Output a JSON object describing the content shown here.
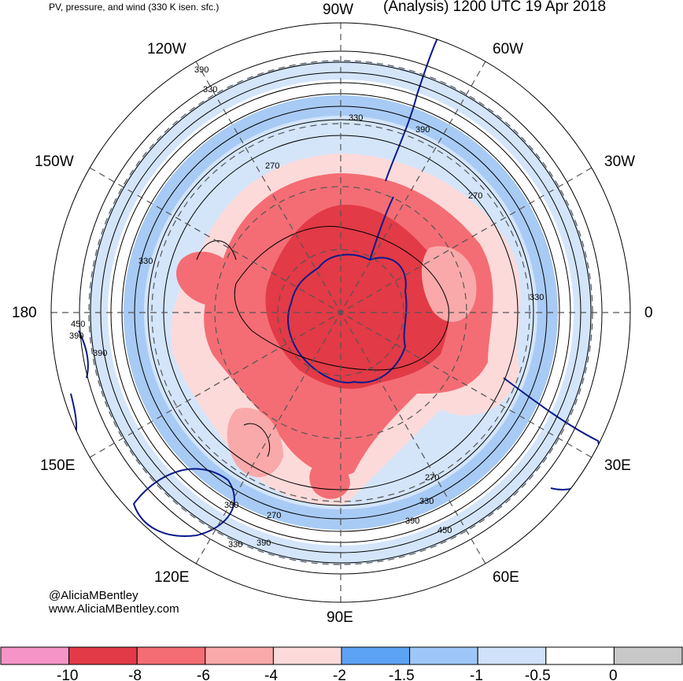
{
  "header": {
    "left_title": "PV, pressure, and wind (330 K isen. sfc.)",
    "right_title": "(Analysis) 1200 UTC 19 Apr 2018"
  },
  "credits": {
    "handle": "@AliciaMBentley",
    "url": "www.AliciaMBentley.com"
  },
  "map": {
    "projection": "south-polar-stereographic",
    "longitude_labels": [
      "90W",
      "60W",
      "30W",
      "0",
      "30E",
      "60E",
      "90E",
      "120E",
      "150E",
      "180",
      "150W",
      "120W"
    ],
    "contour_labels": [
      "390",
      "330",
      "330",
      "390",
      "270",
      "270",
      "330",
      "330",
      "390",
      "390",
      "450",
      "330",
      "270",
      "330",
      "390",
      "450",
      "270",
      "330",
      "390",
      "450"
    ],
    "colors": {
      "pv_strong_neg": "#e23a46",
      "pv_neg": "#f46d74",
      "pv_mid_neg": "#f9a9a9",
      "pv_weak_neg": "#fcdada",
      "pv_pos": "#a8cbf5",
      "pv_pos_light": "#d4e5fa",
      "coastline": "#0a1a8c",
      "contour": "#000000"
    }
  },
  "colorbar": {
    "labels": [
      "-10",
      "-8",
      "-6",
      "-4",
      "-2",
      "-1.5",
      "-1",
      "-0.5",
      "0"
    ],
    "swatches": [
      "#f594c6",
      "#e23a46",
      "#f46d74",
      "#f9a9a9",
      "#fcdada",
      "#5da3f3",
      "#9ec7f7",
      "#cfe2fa",
      "#ffffff",
      "#c8c8c8"
    ]
  }
}
